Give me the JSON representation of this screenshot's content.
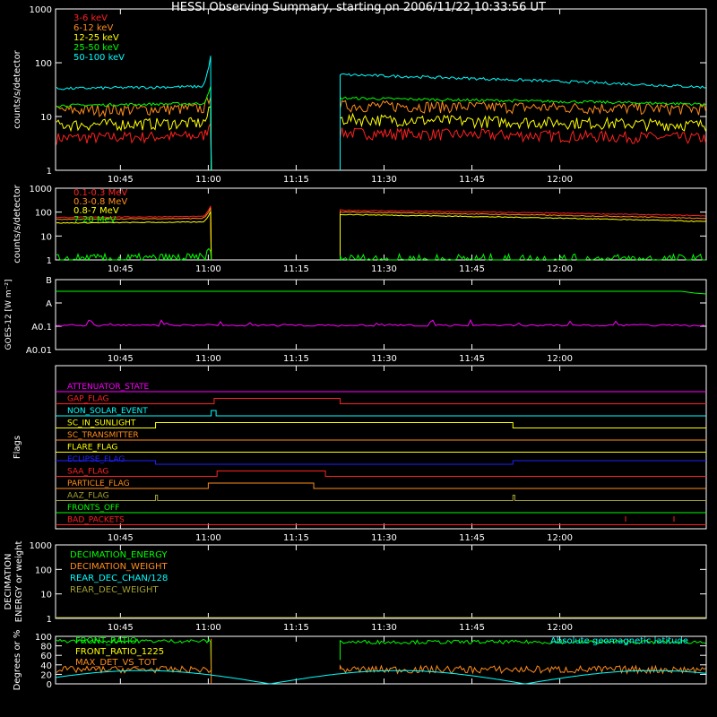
{
  "title": "HESSI Observing Summary, starting on 2006/11/22 10:33:56 UT",
  "x_ticks": [
    "10:45",
    "11:00",
    "11:15",
    "11:30",
    "11:45",
    "12:00"
  ],
  "colors": {
    "red": "#ff2020",
    "orange": "#ff8c1a",
    "yellow": "#ffff00",
    "green": "#00ff00",
    "cyan": "#00ffff",
    "magenta": "#ff00ff",
    "blue": "#2020ff",
    "olive": "#a0a030",
    "white": "#ffffff"
  },
  "panels": {
    "p1": {
      "ylabel": "counts/s/detector",
      "yticks": [
        "1000",
        "100",
        "10",
        "1"
      ],
      "legend": [
        {
          "label": "3-6 keV",
          "color": "red"
        },
        {
          "label": "6-12 keV",
          "color": "orange"
        },
        {
          "label": "12-25 keV",
          "color": "yellow"
        },
        {
          "label": "25-50 keV",
          "color": "green"
        },
        {
          "label": "50-100 keV",
          "color": "cyan"
        }
      ]
    },
    "p2": {
      "ylabel": "counts/s/detector",
      "yticks": [
        "1000",
        "100",
        "10",
        "1"
      ],
      "legend": [
        {
          "label": "0.1-0.3 MeV",
          "color": "red"
        },
        {
          "label": "0.3-0.8 MeV",
          "color": "orange"
        },
        {
          "label": "0.8-7 MeV",
          "color": "yellow"
        },
        {
          "label": "7-20 MeV",
          "color": "green"
        }
      ]
    },
    "p3": {
      "ylabel": "GOES-12 [W m⁻²]",
      "yticks": [
        "B",
        "A",
        "A0.1",
        "A0.01"
      ]
    },
    "p4": {
      "ylabel": "Flags",
      "flags": [
        {
          "label": "ATTENUATOR_STATE",
          "color": "magenta"
        },
        {
          "label": "GAP_FLAG",
          "color": "red"
        },
        {
          "label": "NON_SOLAR_EVENT",
          "color": "cyan"
        },
        {
          "label": "SC_IN_SUNLIGHT",
          "color": "yellow"
        },
        {
          "label": "SC_TRANSMITTER",
          "color": "orange"
        },
        {
          "label": "FLARE_FLAG",
          "color": "yellow"
        },
        {
          "label": "ECLIPSE_FLAG",
          "color": "blue"
        },
        {
          "label": "SAA_FLAG",
          "color": "red"
        },
        {
          "label": "PARTICLE_FLAG",
          "color": "orange"
        },
        {
          "label": "AAZ_FLAG",
          "color": "olive"
        },
        {
          "label": "FRONTS_OFF",
          "color": "green"
        },
        {
          "label": "BAD_PACKETS",
          "color": "red"
        }
      ]
    },
    "p5": {
      "ylabel1": "DECIMATION",
      "ylabel2": "ENERGY or weight",
      "yticks": [
        "1000",
        "100",
        "10",
        "1"
      ],
      "legend": [
        {
          "label": "DECIMATION_ENERGY",
          "color": "green"
        },
        {
          "label": "DECIMATION_WEIGHT",
          "color": "orange"
        },
        {
          "label": "REAR_DEC_CHAN/128",
          "color": "cyan"
        },
        {
          "label": "REAR_DEC_WEIGHT",
          "color": "olive"
        }
      ]
    },
    "p6": {
      "ylabel": "Degrees or %",
      "yticks": [
        "100",
        "80",
        "60",
        "40",
        "20",
        "0"
      ],
      "legend": [
        {
          "label": "FRONT_RATIO",
          "color": "green"
        },
        {
          "label": "FRONT_RATIO_1225",
          "color": "yellow"
        },
        {
          "label": "MAX_DET_VS_TOT",
          "color": "orange"
        }
      ],
      "annotation": "Absolute geomagnetic latitude"
    }
  },
  "chart_data": {
    "type": "line",
    "title": "HESSI Observing Summary, starting on 2006/11/22 10:33:56 UT",
    "x_range": [
      "10:33:56",
      "12:25"
    ],
    "gap": [
      "11:00:30",
      "11:22:30"
    ],
    "panels": [
      {
        "name": "X-ray count rates",
        "yscale": "log",
        "ylim": [
          1,
          1000
        ],
        "ylabel": "counts/s/detector",
        "series": [
          {
            "name": "3-6 keV",
            "pre": 4,
            "post_start": 5,
            "post_end": 4
          },
          {
            "name": "6-12 keV",
            "pre": 13,
            "post_start": 16,
            "post_end": 14
          },
          {
            "name": "12-25 keV",
            "pre": 7,
            "post_start": 9,
            "post_end": 7
          },
          {
            "name": "25-50 keV",
            "pre": 16,
            "post_start": 22,
            "post_end": 17
          },
          {
            "name": "50-100 keV",
            "pre": 33,
            "post_start": 60,
            "post_end": 35
          }
        ]
      },
      {
        "name": "Gamma-ray count rates",
        "yscale": "log",
        "ylim": [
          1,
          1000
        ],
        "ylabel": "counts/s/detector",
        "series": [
          {
            "name": "0.1-0.3 MeV",
            "pre": 60,
            "post_start": 120,
            "post_end": 70
          },
          {
            "name": "0.3-0.8 MeV",
            "pre": 50,
            "post_start": 100,
            "post_end": 55
          },
          {
            "name": "0.8-7 MeV",
            "pre": 35,
            "post_start": 80,
            "post_end": 40
          },
          {
            "name": "7-20 MeV",
            "pre": 1,
            "post_start": 1,
            "post_end": 1
          }
        ]
      },
      {
        "name": "GOES",
        "yscale": "log",
        "ylabel": "GOES-12 [W m⁻²]",
        "levels": [
          "B",
          "A",
          "A0.1",
          "A0.01"
        ]
      },
      {
        "name": "Flags"
      },
      {
        "name": "Decimation",
        "yscale": "log",
        "ylim": [
          1,
          1000
        ]
      },
      {
        "name": "Ratios",
        "ylim": [
          0,
          100
        ],
        "ylabel": "Degrees or %",
        "series": [
          {
            "name": "FRONT_RATIO",
            "pre": 90,
            "post": 88
          },
          {
            "name": "MAX_DET_VS_TOT",
            "pre": 30,
            "post": 30
          },
          {
            "name": "Absolute geomagnetic latitude",
            "min": 0,
            "max": 28
          }
        ]
      }
    ]
  }
}
